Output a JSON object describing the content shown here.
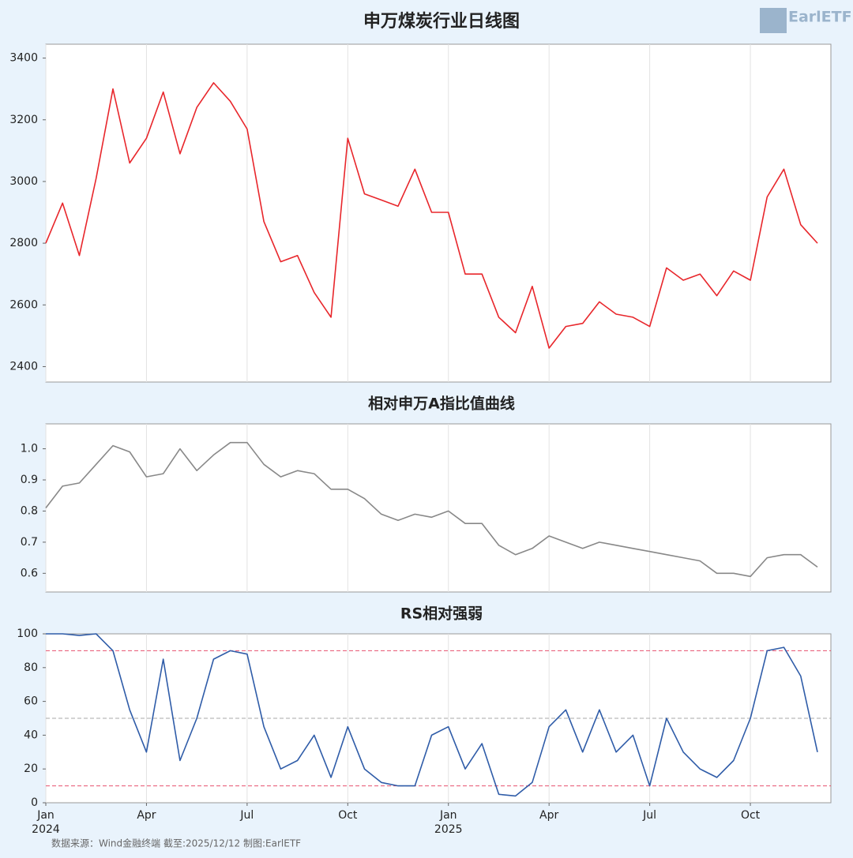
{
  "logo": "EarlETF",
  "source": "数据来源：Wind金融终端 截至:2025/12/12 制图:EarlETF",
  "chart_data": [
    {
      "type": "line",
      "title": "申万煤炭行业日线图",
      "color": "#e8262b",
      "ylim": [
        2350,
        3445
      ],
      "yticks": [
        2400,
        2600,
        2800,
        3000,
        3200,
        3400
      ],
      "values": [
        2800,
        2930,
        2760,
        3010,
        3300,
        3060,
        3140,
        3290,
        3090,
        3240,
        3320,
        3260,
        3170,
        2870,
        2740,
        2760,
        2640,
        2560,
        3140,
        2960,
        2940,
        2920,
        3040,
        2900,
        2900,
        2700,
        2700,
        2560,
        2510,
        2660,
        2460,
        2530,
        2540,
        2610,
        2570,
        2560,
        2530,
        2720,
        2680,
        2700,
        2630,
        2710,
        2680,
        2950,
        3040,
        2860,
        2800
      ]
    },
    {
      "type": "line",
      "title": "相对申万A指比值曲线",
      "color": "#888888",
      "ylim": [
        0.54,
        1.08
      ],
      "yticks": [
        {
          "value": 0.6,
          "label": "0.6"
        },
        {
          "value": 0.7,
          "label": "0.7"
        },
        {
          "value": 0.8,
          "label": "0.8"
        },
        {
          "value": 0.9,
          "label": "0.9"
        },
        {
          "value": 1,
          "label": "1.0"
        }
      ],
      "values": [
        0.81,
        0.88,
        0.89,
        0.95,
        1.01,
        0.99,
        0.91,
        0.92,
        1.0,
        0.93,
        0.98,
        1.02,
        1.02,
        0.95,
        0.91,
        0.93,
        0.92,
        0.87,
        0.87,
        0.84,
        0.79,
        0.77,
        0.79,
        0.78,
        0.8,
        0.76,
        0.76,
        0.69,
        0.66,
        0.68,
        0.72,
        0.7,
        0.68,
        0.7,
        0.69,
        0.68,
        0.67,
        0.66,
        0.65,
        0.64,
        0.6,
        0.6,
        0.59,
        0.65,
        0.66,
        0.66,
        0.62
      ]
    },
    {
      "type": "line",
      "title": "RS相对强弱",
      "color": "#2f5ca8",
      "ylim": [
        0,
        100
      ],
      "yticks": [
        0,
        20,
        40,
        60,
        80,
        100
      ],
      "hlines": [
        {
          "value": 90,
          "color": "#e8506e"
        },
        {
          "value": 50,
          "color": "#aaaaaa"
        },
        {
          "value": 10,
          "color": "#e8506e"
        }
      ],
      "values": [
        100,
        100,
        99,
        100,
        90,
        55,
        30,
        85,
        25,
        50,
        85,
        90,
        88,
        45,
        20,
        25,
        40,
        15,
        45,
        20,
        12,
        10,
        10,
        40,
        45,
        20,
        35,
        5,
        4,
        12,
        45,
        55,
        30,
        55,
        30,
        40,
        10,
        50,
        30,
        20,
        15,
        25,
        50,
        90,
        92,
        75,
        30
      ],
      "xlim": [
        0,
        46.8
      ],
      "xticks": [
        {
          "value": 0,
          "label": "Jan 2024"
        },
        {
          "value": 6,
          "label": "Apr"
        },
        {
          "value": 12,
          "label": "Jul"
        },
        {
          "value": 18,
          "label": "Oct"
        },
        {
          "value": 24,
          "label": "Jan 2025"
        },
        {
          "value": 30,
          "label": "Apr"
        },
        {
          "value": 36,
          "label": "Jul"
        },
        {
          "value": 42,
          "label": "Oct"
        }
      ]
    }
  ]
}
